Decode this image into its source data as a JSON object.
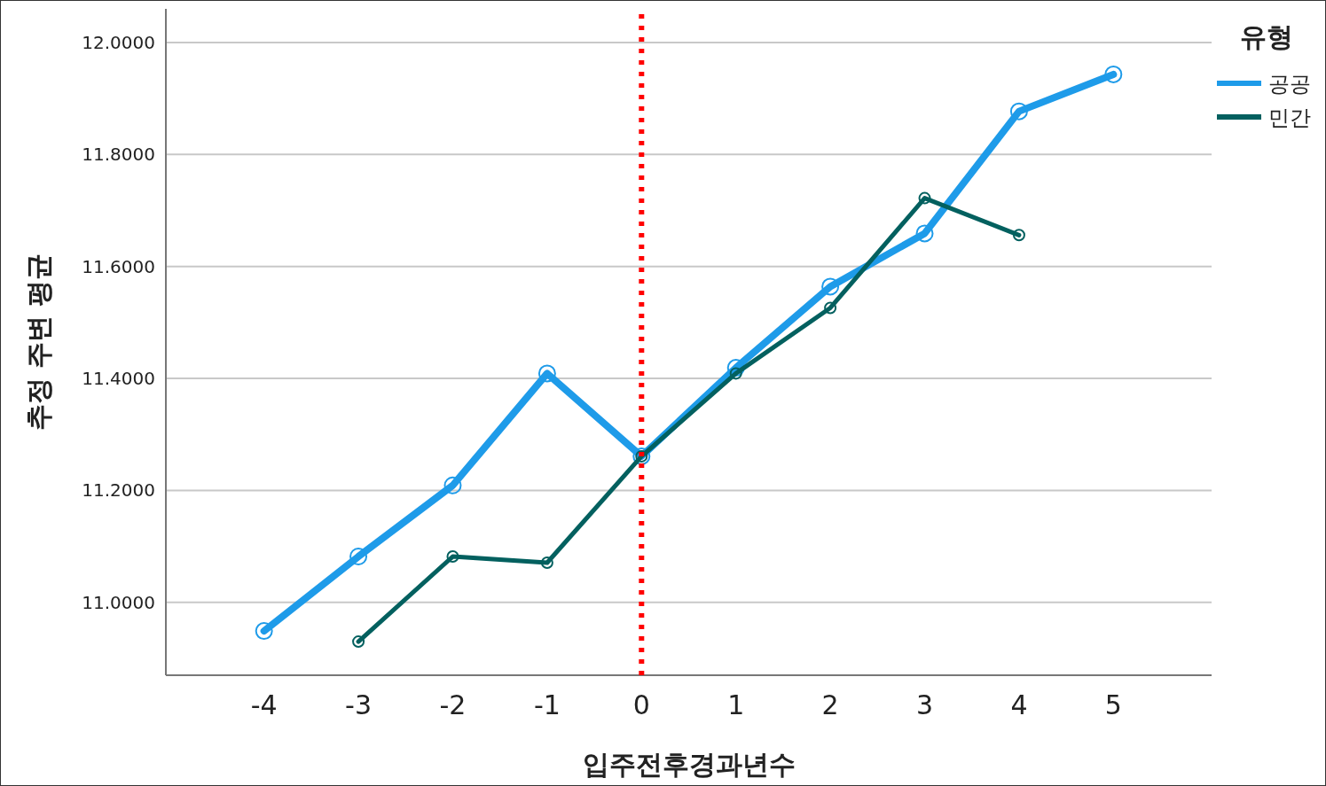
{
  "chart_data": {
    "type": "line",
    "xlabel": "입주전후경과년수",
    "ylabel": "추정 주변 평균",
    "legend_title": "유형",
    "legend": "top right",
    "grid": "y",
    "marker": "circle",
    "line_style": "solid",
    "xlim": [
      -5.04,
      6.04
    ],
    "ylim": [
      10.87,
      12.06
    ],
    "xticks": [
      -4,
      -3,
      -2,
      -1,
      0,
      1,
      2,
      3,
      4,
      5
    ],
    "yticks": [
      {
        "value": 11,
        "label": "11.0000"
      },
      {
        "value": 11.2,
        "label": "11.2000"
      },
      {
        "value": 11.4,
        "label": "11.4000"
      },
      {
        "value": 11.6,
        "label": "11.6000"
      },
      {
        "value": 11.8,
        "label": "11.8000"
      },
      {
        "value": 12,
        "label": "12.0000"
      }
    ],
    "ref_lines": [
      {
        "axis": "x",
        "value": 0,
        "color": "#ff0000",
        "line_style": "dotted"
      }
    ],
    "series": [
      {
        "name": "공공",
        "color": "#1e9be9",
        "x": [
          -4,
          -3,
          -2,
          -1,
          0,
          1,
          2,
          3,
          4,
          5
        ],
        "values": [
          10.949,
          11.082,
          11.209,
          11.409,
          11.261,
          11.419,
          11.564,
          11.659,
          11.877,
          11.943
        ]
      },
      {
        "name": "민간",
        "color": "#03605f",
        "x": [
          -3,
          -2,
          -1,
          0,
          1,
          2,
          3,
          4
        ],
        "values": [
          10.93,
          11.082,
          11.071,
          11.261,
          11.409,
          11.526,
          11.722,
          11.656
        ]
      }
    ]
  }
}
